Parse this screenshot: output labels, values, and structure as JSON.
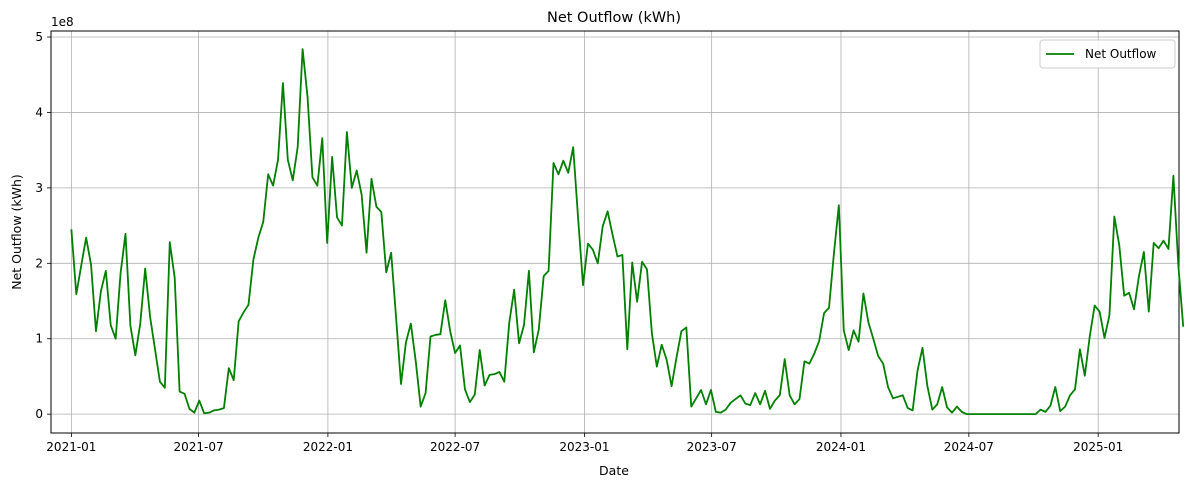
{
  "chart_data": {
    "type": "line",
    "title": "Net Outflow (kWh)",
    "xlabel": "Date",
    "ylabel": "Net Outflow (kWh)",
    "y_multiplier_label": "1e8",
    "grid": true,
    "legend_position": "top-right",
    "line_color": "#008000",
    "xlim": [
      "2020-12-03",
      "2025-04-26"
    ],
    "ylim": [
      -25000000,
      508000000
    ],
    "x_ticks": [
      {
        "date": "2021-01-01",
        "label": "2021-01"
      },
      {
        "date": "2021-07-01",
        "label": "2021-07"
      },
      {
        "date": "2022-01-01",
        "label": "2022-01"
      },
      {
        "date": "2022-07-01",
        "label": "2022-07"
      },
      {
        "date": "2023-01-01",
        "label": "2023-01"
      },
      {
        "date": "2023-07-01",
        "label": "2023-07"
      },
      {
        "date": "2024-01-01",
        "label": "2024-01"
      },
      {
        "date": "2024-07-01",
        "label": "2024-07"
      },
      {
        "date": "2025-01-01",
        "label": "2025-01"
      }
    ],
    "y_ticks": [
      {
        "value": 0,
        "label": "0"
      },
      {
        "value": 100000000,
        "label": "1"
      },
      {
        "value": 200000000,
        "label": "2"
      },
      {
        "value": 300000000,
        "label": "3"
      },
      {
        "value": 400000000,
        "label": "4"
      },
      {
        "value": 500000000,
        "label": "5"
      }
    ],
    "series": [
      {
        "name": "Net Outflow",
        "start_date": "2021-01-01",
        "step_days": 7,
        "values": [
          245,
          159,
          197,
          234,
          198,
          110,
          163,
          190,
          118,
          100,
          187,
          239,
          117,
          78,
          120,
          193,
          129,
          86,
          43,
          35,
          228,
          181,
          30,
          27,
          7,
          2,
          18,
          1,
          2,
          5,
          6,
          8,
          61,
          45,
          123,
          135,
          145,
          205,
          234,
          255,
          318,
          303,
          337,
          439,
          337,
          310,
          354,
          484,
          421,
          314,
          303,
          366,
          227,
          341,
          261,
          250,
          374,
          300,
          323,
          291,
          214,
          312,
          275,
          268,
          188,
          214,
          128,
          40,
          95,
          120,
          70,
          10,
          28,
          103,
          105,
          106,
          151,
          110,
          81,
          91,
          33,
          16,
          26,
          85,
          38,
          52,
          53,
          56,
          43,
          121,
          165,
          94,
          118,
          190,
          82,
          112,
          183,
          190,
          333,
          318,
          336,
          320,
          354,
          260,
          171,
          226,
          218,
          200,
          249,
          269,
          238,
          209,
          211,
          86,
          201,
          149,
          202,
          192,
          107,
          63,
          92,
          72,
          37,
          75,
          110,
          115,
          10,
          21,
          32,
          13,
          32,
          3,
          2,
          6,
          15,
          20,
          25,
          14,
          12,
          28,
          13,
          31,
          7,
          18,
          25,
          73,
          25,
          13,
          20,
          70,
          67,
          80,
          97,
          134,
          141,
          213,
          277,
          111,
          85,
          111,
          96,
          160,
          122,
          100,
          77,
          67,
          36,
          21,
          23,
          25,
          8,
          5,
          58,
          88,
          37,
          6,
          13,
          36,
          9,
          2,
          10,
          3,
          0,
          0,
          0,
          0,
          0,
          0,
          0,
          0,
          0,
          0,
          0,
          0,
          0,
          0,
          0,
          6,
          3,
          11,
          36,
          4,
          10,
          25,
          33,
          86,
          51,
          103,
          144,
          136,
          101,
          131,
          262,
          224,
          157,
          161,
          139,
          183,
          215,
          136,
          227,
          220,
          230,
          219,
          316,
          198,
          116
        ],
        "value_scale": 1000000
      }
    ]
  }
}
